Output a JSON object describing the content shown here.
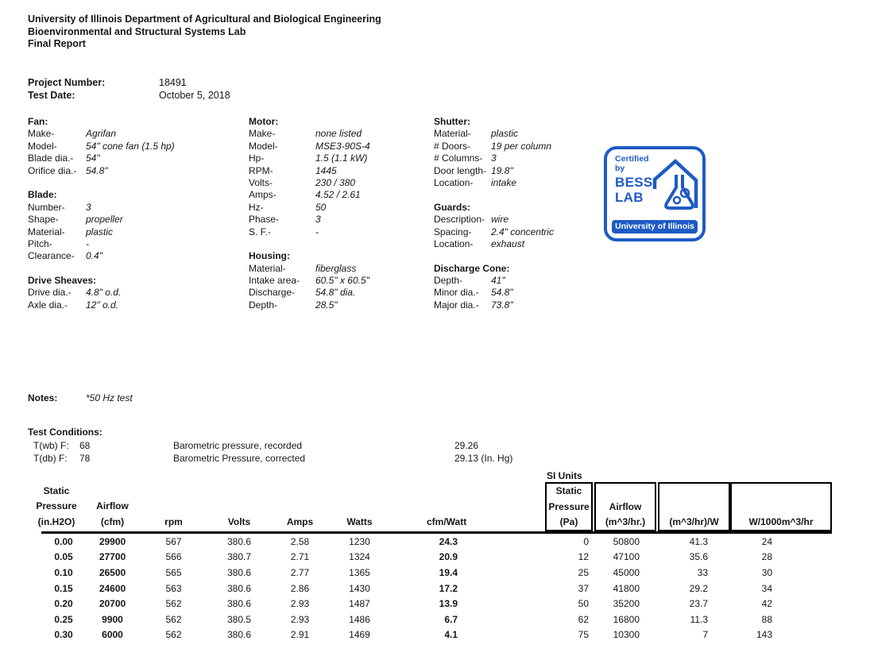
{
  "header": {
    "line1": "University of Illinois Department of Agricultural and Biological Engineering",
    "line2": "Bioenvironmental and Structural Systems Lab",
    "line3": "Final Report"
  },
  "project": {
    "number_label": "Project Number:",
    "number": "18491",
    "date_label": "Test  Date:",
    "date": "October 5, 2018"
  },
  "specs": {
    "col1": [
      {
        "h": "Fan:"
      },
      {
        "l": "Make-",
        "v": "Agrifan"
      },
      {
        "l": "Model-",
        "v": "54\" cone fan (1.5 hp)"
      },
      {
        "l": "Blade dia.-",
        "v": "54\""
      },
      {
        "l": "Orifice dia.-",
        "v": "54.8\""
      },
      {},
      {
        "h": "Blade:"
      },
      {
        "l": "Number-",
        "v": "3"
      },
      {
        "l": "Shape-",
        "v": "propeller"
      },
      {
        "l": "Material-",
        "v": "plastic"
      },
      {
        "l": "Pitch-",
        "v": "-"
      },
      {
        "l": "Clearance-",
        "v": "0.4\""
      },
      {},
      {
        "h": "Drive Sheaves:"
      },
      {
        "l": "Drive dia.-",
        "v": "4.8\" o.d."
      },
      {
        "l": "Axle dia.-",
        "v": "12\" o.d."
      }
    ],
    "col2": [
      {
        "h": "Motor:"
      },
      {
        "l": "Make-",
        "v": "none listed"
      },
      {
        "l": "Model-",
        "v": "MSE3-90S-4"
      },
      {
        "l": "Hp-",
        "v": "1.5 (1.1 kW)"
      },
      {
        "l": "RPM-",
        "v": "1445"
      },
      {
        "l": "Volts-",
        "v": "230 / 380"
      },
      {
        "l": "Amps-",
        "v": "4.52 / 2.61"
      },
      {
        "l": "Hz-",
        "v": "50"
      },
      {
        "l": "Phase-",
        "v": "3"
      },
      {
        "l": "S. F.-",
        "v": "-"
      },
      {},
      {
        "h": "Housing:"
      },
      {
        "l": "Material-",
        "v": "fiberglass"
      },
      {
        "l": "Intake area-",
        "v": "60.5\" x 60.5\""
      },
      {
        "l": "Discharge-",
        "v": "54.8\" dia."
      },
      {
        "l": "Depth-",
        "v": "28.5\""
      }
    ],
    "col3": [
      {
        "h": "Shutter:"
      },
      {
        "l": "Material-",
        "v": "plastic"
      },
      {
        "l": "# Doors-",
        "v": "19 per column"
      },
      {
        "l": "# Columns-",
        "v": "3"
      },
      {
        "l": "Door length-",
        "v": "19.8\""
      },
      {
        "l": "Location-",
        "v": "intake"
      },
      {},
      {
        "h": "Guards:"
      },
      {
        "l": "Description-",
        "v": "wire"
      },
      {
        "l": "Spacing-",
        "v": "2.4\" concentric"
      },
      {
        "l": "Location-",
        "v": "exhaust"
      },
      {},
      {
        "h": "Discharge Cone:"
      },
      {
        "l": "Depth-",
        "v": "41\""
      },
      {
        "l": "Minor dia.-",
        "v": "54.8\""
      },
      {
        "l": "Major dia.-",
        "v": "73.8\""
      }
    ]
  },
  "logo": {
    "certified": "Certified",
    "by": "by",
    "bess": "BESS",
    "lab": "LAB",
    "university": "University of Illinois",
    "blue": "#1d5bc4"
  },
  "notes": {
    "label": "Notes:",
    "text": "*50 Hz test"
  },
  "test_conditions": {
    "title": "Test Conditions:",
    "rows": [
      {
        "label": "T(wb) F:",
        "value": "68",
        "desc": "Barometric pressure, recorded",
        "reading": "29.26"
      },
      {
        "label": "T(db) F:",
        "value": "78",
        "desc": "Barometric Pressure, corrected",
        "reading": "29.13 (In. Hg)"
      }
    ]
  },
  "table": {
    "si_units_label": "SI Units",
    "left_headers": [
      [
        "Static",
        "Pressure",
        "(in.H2O)"
      ],
      [
        "Airflow",
        "(cfm)"
      ],
      [
        "rpm"
      ],
      [
        "Volts"
      ],
      [
        "Amps"
      ],
      [
        "Watts"
      ],
      [
        "cfm/Watt"
      ]
    ],
    "si_headers": [
      [
        "Static",
        "Pressure",
        "(Pa)"
      ],
      [
        "Airflow",
        "(m^3/hr.)"
      ],
      [
        "(m^3/hr)/W"
      ],
      [
        "W/1000m^3/hr"
      ]
    ],
    "rows": [
      [
        "0.00",
        "29900",
        "567",
        "380.6",
        "2.58",
        "1230",
        "24.3",
        "0",
        "50800",
        "41.3",
        "24"
      ],
      [
        "0.05",
        "27700",
        "566",
        "380.7",
        "2.71",
        "1324",
        "20.9",
        "12",
        "47100",
        "35.6",
        "28"
      ],
      [
        "0.10",
        "26500",
        "565",
        "380.6",
        "2.77",
        "1365",
        "19.4",
        "25",
        "45000",
        "33",
        "30"
      ],
      [
        "0.15",
        "24600",
        "563",
        "380.6",
        "2.86",
        "1430",
        "17.2",
        "37",
        "41800",
        "29.2",
        "34"
      ],
      [
        "0.20",
        "20700",
        "562",
        "380.6",
        "2.93",
        "1487",
        "13.9",
        "50",
        "35200",
        "23.7",
        "42"
      ],
      [
        "0.25",
        "9900",
        "562",
        "380.5",
        "2.93",
        "1486",
        "6.7",
        "62",
        "16800",
        "11.3",
        "88"
      ],
      [
        "0.30",
        "6000",
        "562",
        "380.6",
        "2.91",
        "1469",
        "4.1",
        "75",
        "10300",
        "7",
        "143"
      ]
    ]
  }
}
